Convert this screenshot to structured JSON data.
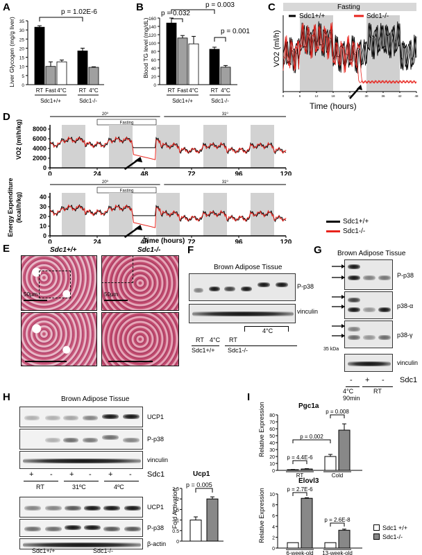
{
  "panels": {
    "A": {
      "label": "A",
      "ylabel": "Liver Glycogen (mg/g liver)",
      "pvalue": "p = 1.02E-6",
      "yticks": [
        "0",
        "5",
        "10",
        "15",
        "20",
        "25",
        "30",
        "35"
      ],
      "groups": [
        {
          "name": "Sdc1+/+",
          "conds": [
            "RT",
            "Fast",
            "4°C"
          ]
        },
        {
          "name": "Sdc1-/-",
          "conds": [
            "RT",
            "4°C"
          ]
        }
      ]
    },
    "B": {
      "label": "B",
      "ylabel": "Blood TG level (mg/dL)",
      "pvalues": [
        "p = 0.032",
        "p = 0.003",
        "p = 0.001"
      ],
      "yticks": [
        "0",
        "20",
        "40",
        "60",
        "80",
        "100",
        "120",
        "140",
        "160"
      ],
      "groups": [
        {
          "name": "Sdc1+/+",
          "conds": [
            "RT",
            "Fast",
            "4°C"
          ]
        },
        {
          "name": "Sdc1-/-",
          "conds": [
            "RT",
            "4°C"
          ]
        }
      ]
    },
    "C": {
      "label": "C",
      "banner": "Fasting",
      "legend": [
        "Sdc1+/+",
        "Sdc1-/-"
      ],
      "ylabel": "VO2 (ml/h)",
      "xlabel": "Time (hours)",
      "xticks": [
        "0",
        "6",
        "12",
        "18",
        "24",
        "30",
        "36",
        "42",
        "48"
      ]
    },
    "D": {
      "label": "D",
      "top": {
        "ylabel1": "VO2 (ml/h/kg)",
        "yticks": [
          "0",
          "2000",
          "4000",
          "6000",
          "8000"
        ],
        "temp20": "20º",
        "temp31": "31º",
        "banner": "Fasting",
        "xticks": [
          "0",
          "24",
          "48",
          "72",
          "96",
          "120"
        ]
      },
      "bottom": {
        "ylabel1": "Energy Expenditure",
        "ylabel2": "(kcal/h/kg)",
        "yticks": [
          "0",
          "10",
          "20",
          "30",
          "40"
        ],
        "temp20": "20º",
        "temp31": "31º",
        "banner": "Fasting",
        "xticks": [
          "0",
          "24",
          "48",
          "72",
          "96",
          "120"
        ],
        "xlabel": "Time (hours)"
      },
      "legend": [
        "Sdc1+/+",
        "Sdc1-/-"
      ]
    },
    "E": {
      "label": "E",
      "col1": "Sdc1+/+",
      "col2": "Sdc1-/-",
      "scale1": "50µm",
      "scale2": "50µm"
    },
    "F": {
      "label": "F",
      "title": "Brown Adipose Tissue",
      "bands": [
        "P-p38",
        "vinculin"
      ],
      "lanes": [
        "RT",
        "4°C",
        "RT",
        "4°C"
      ],
      "genotypes": [
        "Sdc1+/+",
        "Sdc1-/-"
      ]
    },
    "G": {
      "label": "G",
      "title": "Brown Adipose Tissue",
      "bands": [
        "P-p38",
        "p38-α",
        "p38-γ",
        "vinculin"
      ],
      "marker": "35 kDa",
      "sdc1_label": "Sdc1",
      "lane_signs": [
        "-",
        "+",
        "-"
      ],
      "conds": [
        "4°C\n90min",
        "RT"
      ]
    },
    "H": {
      "label": "H",
      "title": "Brown Adipose Tissue",
      "bands_top": [
        "UCP1",
        "P-p38",
        "vinculin"
      ],
      "sdc1_label": "Sdc1",
      "signs": [
        "+",
        "-",
        "+",
        "-",
        "+",
        "-"
      ],
      "conds": [
        "RT",
        "31ºC",
        "4ºC"
      ],
      "bands_bottom": [
        "UCP1",
        "P-p38",
        "β-actin"
      ],
      "genotypes": [
        "Sdc1+/+",
        "Sdc1-/-"
      ]
    },
    "H2": {
      "title": "Ucp1",
      "ylabel": "Fold Activation",
      "pvalue": "p = 0.005",
      "yticks": [
        "0",
        "0.5",
        "1",
        "1.5",
        "2",
        "2.5"
      ]
    },
    "I": {
      "label": "I",
      "top": {
        "title": "Pgc1a",
        "ylabel": "Relative Expression",
        "pvalues": [
          "p = 0.008",
          "p = 0.002",
          "p = 4.4E-6"
        ],
        "yticks": [
          "0",
          "10",
          "20",
          "30",
          "40",
          "50",
          "60",
          "70",
          "80"
        ],
        "categories": [
          "RT",
          "Cold"
        ]
      },
      "bottom": {
        "title": "Elovl3",
        "ylabel": "Relative Expression",
        "pvalues": [
          "p = 2.7E-6",
          "p = 2.6E-8"
        ],
        "yticks": [
          "0",
          "2",
          "4",
          "6",
          "8",
          "10"
        ],
        "categories": [
          "6-week-old",
          "13-week-old"
        ]
      },
      "legend": [
        "Sdc1 +/+",
        "Sdc1-/-"
      ]
    }
  },
  "chart_data": [
    {
      "type": "bar",
      "title": "",
      "ylabel": "Liver Glycogen (mg/g liver)",
      "ylim": [
        0,
        35
      ],
      "categories": [
        "Sdc1+/+ RT",
        "Sdc1+/+ Fast",
        "Sdc1+/+ 4°C",
        "Sdc1-/- RT",
        "Sdc1-/- 4°C"
      ],
      "values": [
        31.5,
        10,
        12.5,
        18.5,
        9.5
      ],
      "errors": [
        0.8,
        2.5,
        1.0,
        1.5,
        0.3
      ],
      "colors": [
        "#000000",
        "#a0a0a0",
        "#ffffff",
        "#000000",
        "#a0a0a0"
      ]
    },
    {
      "type": "bar",
      "title": "",
      "ylabel": "Blood TG level (mg/dL)",
      "ylim": [
        0,
        160
      ],
      "categories": [
        "Sdc1+/+ RT",
        "Sdc1+/+ Fast",
        "Sdc1+/+ 4°C",
        "Sdc1-/- RT",
        "Sdc1-/- 4°C"
      ],
      "values": [
        148,
        112,
        98,
        85,
        42
      ],
      "errors": [
        12,
        6,
        18,
        5,
        4
      ],
      "colors": [
        "#000000",
        "#a0a0a0",
        "#ffffff",
        "#000000",
        "#a0a0a0"
      ]
    },
    {
      "type": "bar",
      "title": "Ucp1",
      "ylabel": "Fold Activation",
      "ylim": [
        0,
        2.5
      ],
      "categories": [
        "Sdc1+/+",
        "Sdc1-/-"
      ],
      "values": [
        1.0,
        2.0
      ],
      "errors": [
        0.15,
        0.1
      ],
      "colors": [
        "#ffffff",
        "#888888"
      ]
    },
    {
      "type": "bar",
      "title": "Pgc1a",
      "ylabel": "Relative Expression",
      "ylim": [
        0,
        80
      ],
      "categories": [
        "RT",
        "Cold"
      ],
      "series": [
        {
          "name": "Sdc1 +/+",
          "values": [
            1.0,
            20
          ],
          "errors": [
            0.3,
            3
          ]
        },
        {
          "name": "Sdc1-/-",
          "values": [
            2.0,
            58
          ],
          "errors": [
            0.5,
            9
          ]
        }
      ]
    },
    {
      "type": "bar",
      "title": "Elovl3",
      "ylabel": "Relative Expression",
      "ylim": [
        0,
        10
      ],
      "categories": [
        "6-week-old",
        "13-week-old"
      ],
      "series": [
        {
          "name": "Sdc1 +/+",
          "values": [
            1.0,
            1.0
          ],
          "errors": [
            0,
            0
          ]
        },
        {
          "name": "Sdc1-/-",
          "values": [
            9.2,
            3.3
          ],
          "errors": [
            0.1,
            0.2
          ]
        }
      ]
    }
  ]
}
